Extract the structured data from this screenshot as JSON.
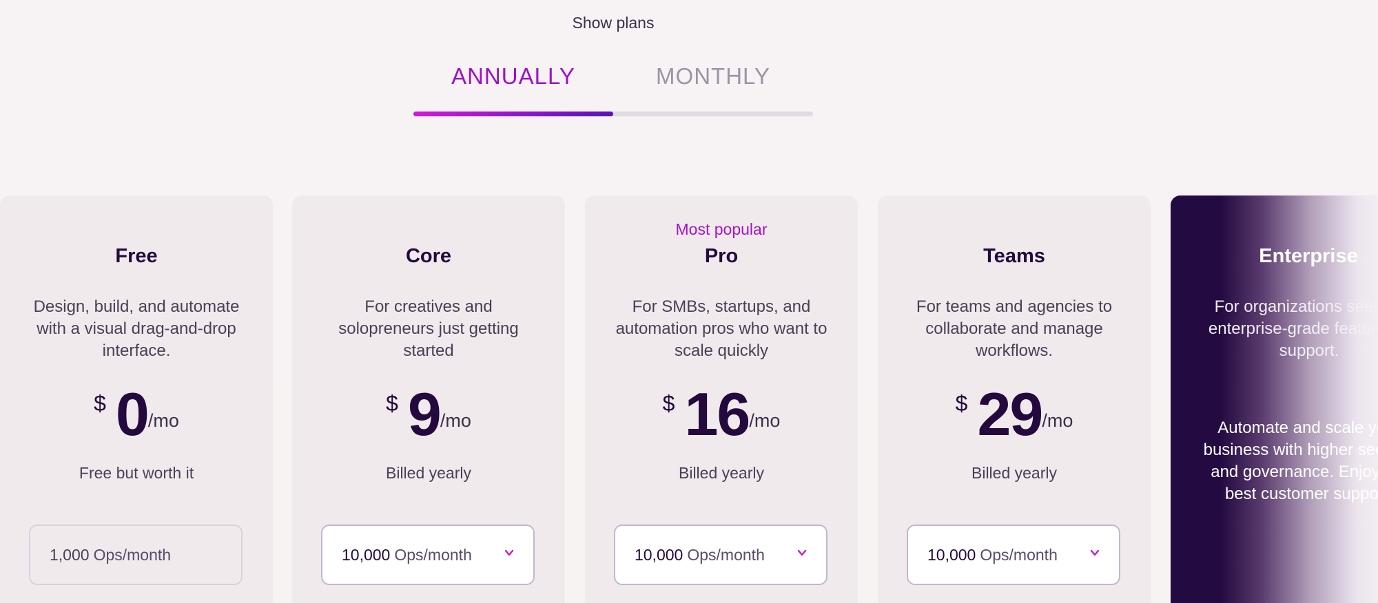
{
  "toggle": {
    "label": "Show plans",
    "tabs": [
      {
        "label": "ANNUALLY",
        "active": true
      },
      {
        "label": "MONTHLY",
        "active": false
      }
    ]
  },
  "plans": [
    {
      "title": "Free",
      "description": "Design, build, and automate with a visual drag-and-drop interface.",
      "currency": "$",
      "amount": "0",
      "unit": "/mo",
      "billing": "Free but worth it",
      "ops_value": "1,000",
      "ops_unit": "Ops/month"
    },
    {
      "title": "Core",
      "description": "For creatives and solopreneurs just getting started",
      "currency": "$",
      "amount": "9",
      "unit": "/mo",
      "billing": "Billed yearly",
      "ops_value": "10,000",
      "ops_unit": "Ops/month"
    },
    {
      "badge": "Most popular",
      "title": "Pro",
      "description": "For SMBs, startups, and automation pros who want to scale quickly",
      "currency": "$",
      "amount": "16",
      "unit": "/mo",
      "billing": "Billed yearly",
      "ops_value": "10,000",
      "ops_unit": "Ops/month"
    },
    {
      "title": "Teams",
      "description": "For teams and agencies to collaborate and manage workflows.",
      "currency": "$",
      "amount": "29",
      "unit": "/mo",
      "billing": "Billed yearly",
      "ops_value": "10,000",
      "ops_unit": "Ops/month"
    }
  ],
  "enterprise": {
    "title": "Enterprise",
    "description": "For organizations seeking enterprise-grade features & support.",
    "details": "Automate and scale your business with higher security and governance. Enjoy the best customer support."
  },
  "colors": {
    "accent": "#a314c5",
    "dark": "#230a40"
  }
}
